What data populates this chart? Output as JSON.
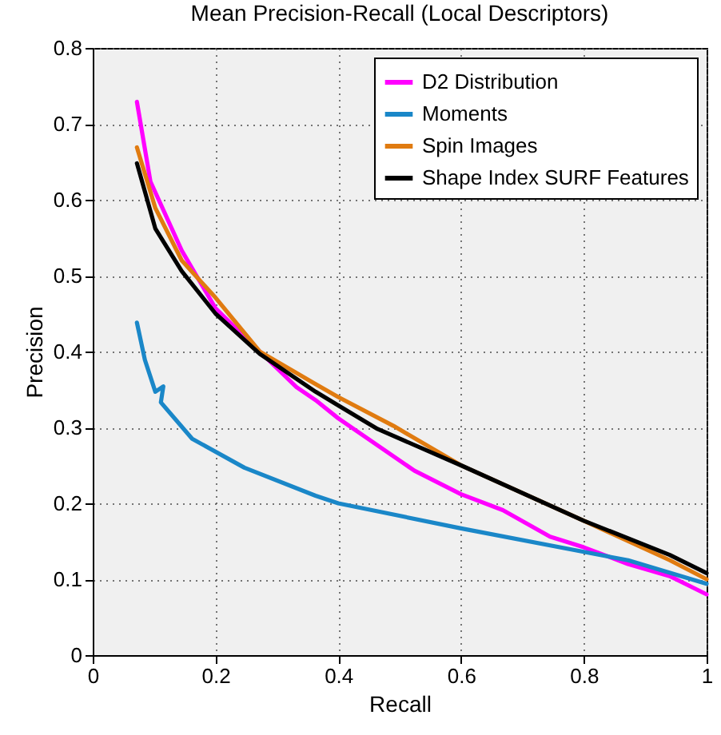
{
  "chart_data": {
    "type": "line",
    "title": "Mean Precision-Recall (Local Descriptors)",
    "xlabel": "Recall",
    "ylabel": "Precision",
    "xlim": [
      0,
      1
    ],
    "xticks": [
      0,
      0.2,
      0.4,
      0.6,
      0.8,
      1
    ],
    "ylim": [
      0,
      0.8
    ],
    "yticks": [
      0,
      0.1,
      0.2,
      0.3,
      0.4,
      0.5,
      0.6,
      0.7,
      0.8
    ],
    "grid": true,
    "legend": "top right",
    "series": [
      {
        "name": "D2 Distribution",
        "color": "#ff00ff",
        "x": [
          0.072,
          0.094,
          0.145,
          0.2,
          0.272,
          0.332,
          0.363,
          0.4,
          0.524,
          0.6,
          0.668,
          0.745,
          0.8,
          0.872,
          0.94,
          1.0
        ],
        "values": [
          0.729,
          0.624,
          0.533,
          0.457,
          0.4,
          0.353,
          0.336,
          0.312,
          0.243,
          0.212,
          0.191,
          0.156,
          0.142,
          0.12,
          0.104,
          0.08
        ]
      },
      {
        "name": "Moments",
        "color": "#1a87c8",
        "x": [
          0.072,
          0.085,
          0.102,
          0.115,
          0.111,
          0.162,
          0.247,
          0.363,
          0.4,
          0.6,
          0.8,
          0.872,
          1.0
        ],
        "values": [
          0.438,
          0.389,
          0.347,
          0.354,
          0.333,
          0.285,
          0.247,
          0.21,
          0.2,
          0.167,
          0.136,
          0.125,
          0.094
        ]
      },
      {
        "name": "Spin Images",
        "color": "#e07b10",
        "x": [
          0.072,
          0.102,
          0.145,
          0.2,
          0.272,
          0.363,
          0.4,
          0.49,
          0.6,
          0.8,
          0.94,
          1.0
        ],
        "values": [
          0.669,
          0.589,
          0.52,
          0.471,
          0.4,
          0.357,
          0.34,
          0.302,
          0.25,
          0.177,
          0.125,
          0.1
        ]
      },
      {
        "name": "Shape Index SURF Features",
        "color": "#000000",
        "x": [
          0.072,
          0.102,
          0.145,
          0.2,
          0.272,
          0.363,
          0.4,
          0.464,
          0.6,
          0.8,
          0.94,
          1.0
        ],
        "values": [
          0.648,
          0.562,
          0.506,
          0.45,
          0.397,
          0.347,
          0.329,
          0.298,
          0.25,
          0.177,
          0.132,
          0.108
        ]
      }
    ]
  }
}
